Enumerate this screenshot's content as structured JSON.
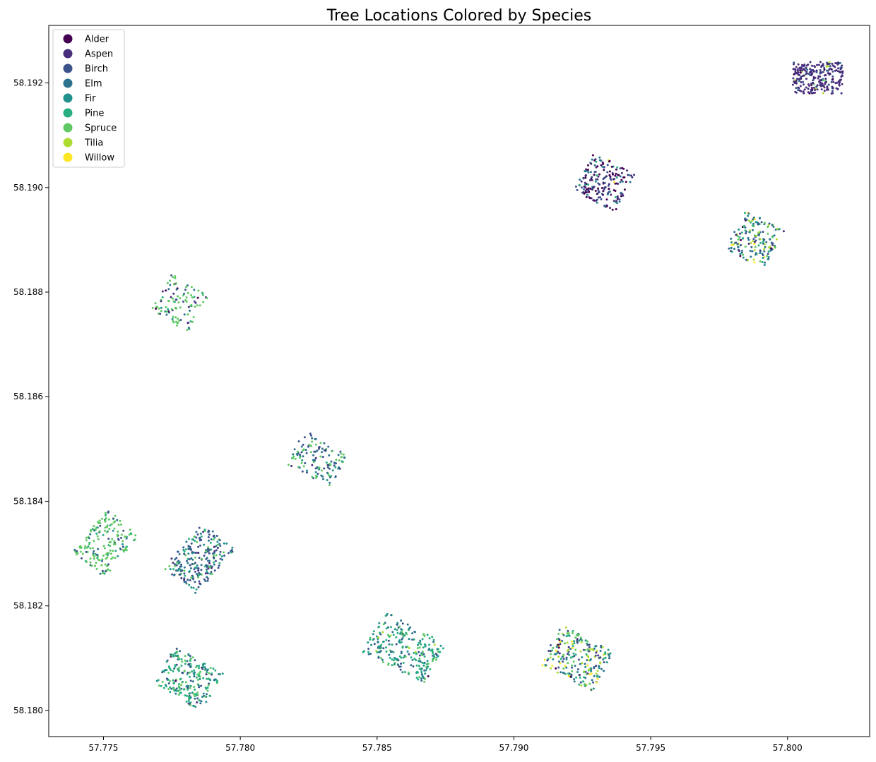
{
  "chart_data": {
    "type": "scatter",
    "title": "Tree Locations Colored by Species",
    "xlabel": "",
    "ylabel": "",
    "xlim": [
      57.773,
      57.803
    ],
    "ylim": [
      58.1795,
      58.1931
    ],
    "xticks": [
      57.775,
      57.78,
      57.785,
      57.79,
      57.795,
      57.8
    ],
    "xtick_labels": [
      "57.775",
      "57.780",
      "57.785",
      "57.790",
      "57.795",
      "57.800"
    ],
    "yticks": [
      58.18,
      58.182,
      58.184,
      58.186,
      58.188,
      58.19,
      58.192
    ],
    "ytick_labels": [
      "58.180",
      "58.182",
      "58.184",
      "58.186",
      "58.188",
      "58.190",
      "58.192"
    ],
    "grid": false,
    "legend_position": "top-left",
    "species": [
      {
        "name": "Alder",
        "color": "#440154"
      },
      {
        "name": "Aspen",
        "color": "#472d7b"
      },
      {
        "name": "Birch",
        "color": "#3b528b"
      },
      {
        "name": "Elm",
        "color": "#2c728e"
      },
      {
        "name": "Fir",
        "color": "#21918c"
      },
      {
        "name": "Pine",
        "color": "#28ae80"
      },
      {
        "name": "Spruce",
        "color": "#5ec962"
      },
      {
        "name": "Tilia",
        "color": "#addc30"
      },
      {
        "name": "Willow",
        "color": "#fde725"
      }
    ],
    "plots": [
      {
        "center": [
          57.8011,
          58.1921
        ],
        "half_length": 0.00058,
        "half_width": 0.00025,
        "angle_deg": 89,
        "count": 260,
        "mix": {
          "Alder": 0.06,
          "Aspen": 0.7,
          "Birch": 0.16,
          "Elm": 0.04,
          "Spruce": 0.02,
          "Tilia": 0.02
        }
      },
      {
        "center": [
          57.7933,
          58.1901
        ],
        "half_length": 0.00085,
        "half_width": 0.00022,
        "angle_deg": -28,
        "count": 200,
        "mix": {
          "Alder": 0.32,
          "Aspen": 0.33,
          "Birch": 0.1,
          "Elm": 0.15,
          "Fir": 0.05,
          "Pine": 0.03,
          "Willow": 0.02
        }
      },
      {
        "center": [
          57.7988,
          58.189
        ],
        "half_length": 0.0008,
        "half_width": 0.00022,
        "angle_deg": -28,
        "count": 180,
        "mix": {
          "Alder": 0.03,
          "Aspen": 0.05,
          "Birch": 0.12,
          "Elm": 0.3,
          "Fir": 0.1,
          "Pine": 0.1,
          "Spruce": 0.1,
          "Tilia": 0.12,
          "Willow": 0.08
        }
      },
      {
        "center": [
          57.7778,
          58.1878
        ],
        "half_length": 0.00078,
        "half_width": 0.00022,
        "angle_deg": -30,
        "count": 110,
        "mix": {
          "Alder": 0.1,
          "Aspen": 0.08,
          "Birch": 0.08,
          "Elm": 0.12,
          "Fir": 0.05,
          "Pine": 0.08,
          "Spruce": 0.49
        }
      },
      {
        "center": [
          57.7828,
          58.1848
        ],
        "half_length": 0.0007,
        "half_width": 0.00025,
        "angle_deg": 60,
        "count": 130,
        "mix": {
          "Aspen": 0.05,
          "Birch": 0.25,
          "Elm": 0.25,
          "Fir": 0.05,
          "Pine": 0.05,
          "Spruce": 0.35
        }
      },
      {
        "center": [
          57.7751,
          58.1832
        ],
        "half_length": 0.00078,
        "half_width": 0.00028,
        "angle_deg": -40,
        "count": 180,
        "mix": {
          "Birch": 0.08,
          "Elm": 0.1,
          "Fir": 0.05,
          "Pine": 0.12,
          "Spruce": 0.65
        }
      },
      {
        "center": [
          57.7785,
          58.1829
        ],
        "half_length": 0.00078,
        "half_width": 0.0003,
        "angle_deg": -40,
        "count": 240,
        "mix": {
          "Aspen": 0.1,
          "Birch": 0.35,
          "Elm": 0.25,
          "Fir": 0.08,
          "Pine": 0.1,
          "Spruce": 0.12
        }
      },
      {
        "center": [
          57.7781,
          58.1806
        ],
        "half_length": 0.0008,
        "half_width": 0.00028,
        "angle_deg": 60,
        "count": 240,
        "mix": {
          "Alder": 0.02,
          "Aspen": 0.04,
          "Birch": 0.1,
          "Elm": 0.15,
          "Fir": 0.12,
          "Pine": 0.35,
          "Spruce": 0.22
        }
      },
      {
        "center": [
          57.786,
          58.1812
        ],
        "half_length": 0.00085,
        "half_width": 0.00035,
        "angle_deg": 62,
        "count": 260,
        "mix": {
          "Alder": 0.02,
          "Birch": 0.12,
          "Elm": 0.22,
          "Fir": 0.18,
          "Pine": 0.3,
          "Spruce": 0.14,
          "Tilia": 0.02
        }
      },
      {
        "center": [
          57.7923,
          58.181
        ],
        "half_length": 0.00082,
        "half_width": 0.0003,
        "angle_deg": 62,
        "count": 240,
        "mix": {
          "Alder": 0.03,
          "Aspen": 0.06,
          "Birch": 0.12,
          "Elm": 0.18,
          "Fir": 0.1,
          "Pine": 0.12,
          "Spruce": 0.14,
          "Tilia": 0.15,
          "Willow": 0.1
        }
      }
    ]
  }
}
